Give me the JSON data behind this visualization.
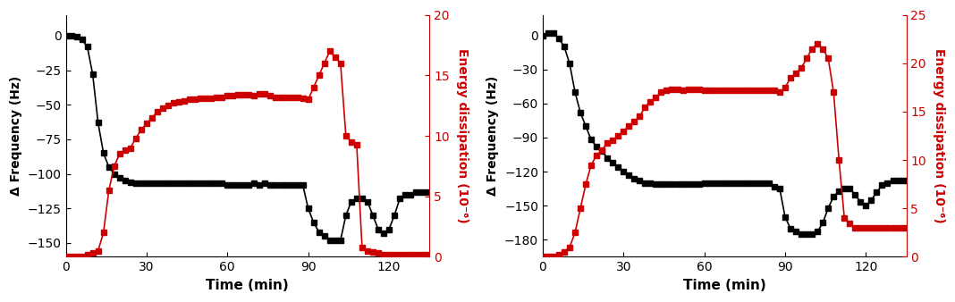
{
  "left": {
    "black_x": [
      0,
      2,
      4,
      6,
      8,
      10,
      12,
      14,
      16,
      18,
      20,
      22,
      24,
      26,
      28,
      30,
      32,
      34,
      36,
      38,
      40,
      42,
      44,
      46,
      48,
      50,
      52,
      54,
      56,
      58,
      60,
      62,
      64,
      66,
      68,
      70,
      72,
      74,
      76,
      78,
      80,
      82,
      84,
      86,
      88,
      90,
      92,
      94,
      96,
      98,
      100,
      102,
      104,
      106,
      108,
      110,
      112,
      114,
      116,
      118,
      120,
      122,
      124,
      126,
      128,
      130,
      132,
      134
    ],
    "black_y": [
      0,
      0,
      -1,
      -3,
      -8,
      -28,
      -63,
      -85,
      -95,
      -100,
      -103,
      -105,
      -106,
      -107,
      -107,
      -107,
      -107,
      -107,
      -107,
      -107,
      -107,
      -107,
      -107,
      -107,
      -107,
      -107,
      -107,
      -107,
      -107,
      -107,
      -108,
      -108,
      -108,
      -108,
      -108,
      -107,
      -108,
      -107,
      -108,
      -108,
      -108,
      -108,
      -108,
      -108,
      -108,
      -125,
      -135,
      -142,
      -145,
      -148,
      -148,
      -148,
      -130,
      -120,
      -118,
      -118,
      -120,
      -130,
      -140,
      -143,
      -140,
      -130,
      -118,
      -115,
      -115,
      -113,
      -113,
      -113
    ],
    "red_x": [
      0,
      2,
      4,
      6,
      8,
      10,
      12,
      14,
      16,
      18,
      20,
      22,
      24,
      26,
      28,
      30,
      32,
      34,
      36,
      38,
      40,
      42,
      44,
      46,
      48,
      50,
      52,
      54,
      56,
      58,
      60,
      62,
      64,
      66,
      68,
      70,
      72,
      74,
      76,
      78,
      80,
      82,
      84,
      86,
      88,
      90,
      92,
      94,
      96,
      98,
      100,
      102,
      104,
      106,
      108,
      110,
      112,
      114,
      116,
      118,
      120,
      122,
      124,
      126,
      128,
      130,
      132,
      134
    ],
    "red_y": [
      0,
      0,
      0,
      0,
      0.2,
      0.3,
      0.5,
      2.0,
      5.5,
      7.5,
      8.5,
      8.8,
      9.0,
      9.8,
      10.5,
      11.0,
      11.5,
      12.0,
      12.3,
      12.5,
      12.7,
      12.8,
      12.9,
      13.0,
      13.0,
      13.1,
      13.1,
      13.1,
      13.2,
      13.2,
      13.3,
      13.3,
      13.4,
      13.4,
      13.4,
      13.3,
      13.5,
      13.5,
      13.3,
      13.2,
      13.2,
      13.2,
      13.2,
      13.2,
      13.1,
      13.0,
      14.0,
      15.0,
      16.0,
      17.0,
      16.5,
      16.0,
      10.0,
      9.5,
      9.3,
      0.8,
      0.5,
      0.4,
      0.3,
      0.2,
      0.2,
      0.2,
      0.2,
      0.2,
      0.2,
      0.2,
      0.2,
      0.2
    ],
    "ylabel_left": "Δ Frequency (Hz)",
    "ylabel_right": "Energy dissipation (10⁻⁶)",
    "xlabel": "Time (min)",
    "ylim_left": [
      -160,
      15
    ],
    "ylim_right": [
      0,
      20
    ],
    "yticks_left": [
      0,
      -25,
      -50,
      -75,
      -100,
      -125,
      -150
    ],
    "yticks_right": [
      0,
      5,
      10,
      15,
      20
    ],
    "xticks": [
      0,
      30,
      60,
      90,
      120
    ],
    "xlim": [
      0,
      135
    ]
  },
  "right": {
    "black_x": [
      0,
      2,
      4,
      6,
      8,
      10,
      12,
      14,
      16,
      18,
      20,
      22,
      24,
      26,
      28,
      30,
      32,
      34,
      36,
      38,
      40,
      42,
      44,
      46,
      48,
      50,
      52,
      54,
      56,
      58,
      60,
      62,
      64,
      66,
      68,
      70,
      72,
      74,
      76,
      78,
      80,
      82,
      84,
      86,
      88,
      90,
      92,
      94,
      96,
      98,
      100,
      102,
      104,
      106,
      108,
      110,
      112,
      114,
      116,
      118,
      120,
      122,
      124,
      126,
      128,
      130,
      132,
      134
    ],
    "black_y": [
      0,
      2,
      2,
      -3,
      -10,
      -25,
      -50,
      -68,
      -80,
      -92,
      -98,
      -102,
      -108,
      -112,
      -116,
      -120,
      -123,
      -126,
      -128,
      -130,
      -130,
      -131,
      -131,
      -131,
      -131,
      -131,
      -131,
      -131,
      -131,
      -131,
      -130,
      -130,
      -130,
      -130,
      -130,
      -130,
      -130,
      -130,
      -130,
      -130,
      -130,
      -130,
      -130,
      -133,
      -135,
      -160,
      -170,
      -173,
      -175,
      -175,
      -175,
      -173,
      -165,
      -152,
      -142,
      -137,
      -135,
      -135,
      -140,
      -147,
      -150,
      -145,
      -138,
      -132,
      -130,
      -128,
      -128,
      -128
    ],
    "red_x": [
      0,
      2,
      4,
      6,
      8,
      10,
      12,
      14,
      16,
      18,
      20,
      22,
      24,
      26,
      28,
      30,
      32,
      34,
      36,
      38,
      40,
      42,
      44,
      46,
      48,
      50,
      52,
      54,
      56,
      58,
      60,
      62,
      64,
      66,
      68,
      70,
      72,
      74,
      76,
      78,
      80,
      82,
      84,
      86,
      88,
      90,
      92,
      94,
      96,
      98,
      100,
      102,
      104,
      106,
      108,
      110,
      112,
      114,
      116,
      118,
      120,
      122,
      124,
      126,
      128,
      130,
      132,
      134
    ],
    "red_y": [
      0,
      0,
      0,
      0.2,
      0.5,
      1.0,
      2.5,
      5.0,
      7.5,
      9.5,
      10.5,
      11.0,
      11.8,
      12.0,
      12.5,
      13.0,
      13.5,
      14.0,
      14.5,
      15.5,
      16.0,
      16.5,
      17.0,
      17.2,
      17.3,
      17.3,
      17.2,
      17.3,
      17.3,
      17.3,
      17.2,
      17.2,
      17.2,
      17.2,
      17.2,
      17.2,
      17.2,
      17.2,
      17.2,
      17.2,
      17.2,
      17.2,
      17.2,
      17.2,
      17.0,
      17.5,
      18.5,
      19.0,
      19.5,
      20.5,
      21.5,
      22.0,
      21.5,
      20.5,
      17.0,
      10.0,
      4.0,
      3.5,
      3.0,
      3.0,
      3.0,
      3.0,
      3.0,
      3.0,
      3.0,
      3.0,
      3.0,
      3.0
    ],
    "ylabel_left": "Δ Frequency (Hz)",
    "ylabel_right": "Energy dissipation (10⁻⁶)",
    "xlabel": "Time (min)",
    "ylim_left": [
      -195,
      18
    ],
    "ylim_right": [
      0,
      25
    ],
    "yticks_left": [
      0,
      -30,
      -60,
      -90,
      -120,
      -150,
      -180
    ],
    "yticks_right": [
      0,
      5,
      10,
      15,
      20,
      25
    ],
    "xticks": [
      0,
      30,
      60,
      90,
      120
    ],
    "xlim": [
      0,
      135
    ]
  },
  "black_color": "#000000",
  "red_color": "#cc0000",
  "marker": "s",
  "markersize": 4,
  "linewidth": 1.2
}
